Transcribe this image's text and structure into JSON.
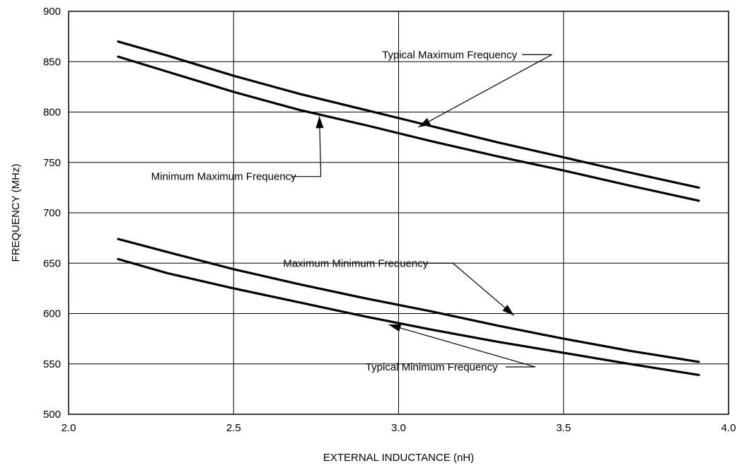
{
  "chart_data": {
    "type": "line",
    "xlabel": "EXTERNAL INDUCTANCE (nH)",
    "ylabel": "FREQUENCY (MHz)",
    "xlim": [
      2.0,
      4.0
    ],
    "ylim": [
      500,
      900
    ],
    "x_ticks": [
      "2.0",
      "2.5",
      "3.0",
      "3.5",
      "4.0"
    ],
    "y_ticks": [
      "500",
      "550",
      "600",
      "650",
      "700",
      "750",
      "800",
      "850",
      "900"
    ],
    "grid": true,
    "series": [
      {
        "name": "Typical Maximum Frequency",
        "x": [
          2.15,
          2.3,
          2.5,
          2.7,
          2.9,
          3.1,
          3.3,
          3.5,
          3.7,
          3.91
        ],
        "y": [
          870,
          856,
          836,
          818,
          802,
          786,
          770,
          755,
          740,
          725
        ]
      },
      {
        "name": "Minimum Maximum Frequency",
        "x": [
          2.15,
          2.3,
          2.5,
          2.7,
          2.9,
          3.1,
          3.3,
          3.5,
          3.7,
          3.91
        ],
        "y": [
          855,
          840,
          820,
          802,
          787,
          771,
          756,
          742,
          727,
          712
        ]
      },
      {
        "name": "Maximum Minimum Frequency",
        "x": [
          2.15,
          2.3,
          2.5,
          2.7,
          2.9,
          3.1,
          3.3,
          3.5,
          3.7,
          3.91
        ],
        "y": [
          674,
          661,
          644,
          629,
          615,
          602,
          588,
          575,
          563,
          552
        ]
      },
      {
        "name": "Typical Minimum Frequency",
        "x": [
          2.15,
          2.3,
          2.5,
          2.7,
          2.9,
          3.1,
          3.3,
          3.5,
          3.7,
          3.91
        ],
        "y": [
          654,
          640,
          625,
          611,
          597,
          584,
          572,
          561,
          550,
          539
        ]
      }
    ],
    "annotations": [
      {
        "text": "Typical Maximum Frequency",
        "series": 0,
        "text_x": 2.95,
        "text_y": 857,
        "arrow_to": [
          3.06,
          785
        ]
      },
      {
        "text": "Minimum Maximum Frequency",
        "series": 1,
        "text_x": 2.25,
        "text_y": 736,
        "arrow_to": [
          2.76,
          796
        ]
      },
      {
        "text": "Maximum Minimum Frequency",
        "series": 2,
        "text_x": 2.65,
        "text_y": 650,
        "arrow_to": [
          3.35,
          598
        ]
      },
      {
        "text": "Typical Minimum Frequency",
        "series": 3,
        "text_x": 2.9,
        "text_y": 547,
        "arrow_to": [
          2.97,
          589
        ]
      }
    ]
  }
}
